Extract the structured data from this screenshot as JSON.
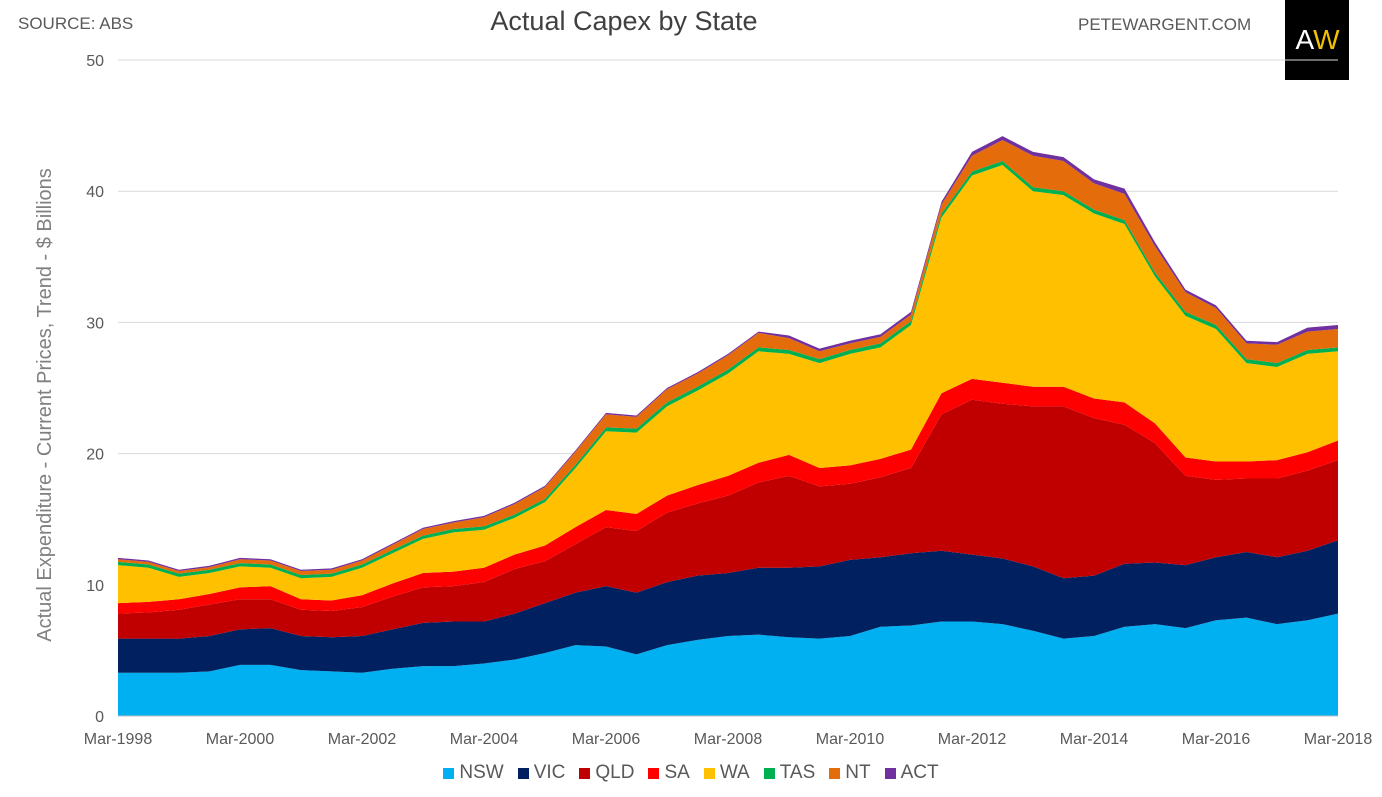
{
  "header": {
    "source": "SOURCE: ABS",
    "title": "Actual Capex by State",
    "site": "PETEWARGENT.COM",
    "logo_a": "A",
    "logo_w": "W"
  },
  "chart_data": {
    "type": "area",
    "stacked": true,
    "title": "Actual Capex by State",
    "xlabel": "",
    "ylabel": "Actual Expenditure - Current Prices, Trend - $ Billions",
    "ylim": [
      0,
      50
    ],
    "yticks": [
      0,
      10,
      20,
      30,
      40,
      50
    ],
    "grid": true,
    "legend_position": "bottom",
    "x_tick_labels": [
      "Mar-1998",
      "Mar-2000",
      "Mar-2002",
      "Mar-2004",
      "Mar-2006",
      "Mar-2008",
      "Mar-2010",
      "Mar-2012",
      "Mar-2014",
      "Mar-2016",
      "Mar-2018"
    ],
    "x_tick_years": [
      1998,
      2000,
      2002,
      2004,
      2006,
      2008,
      2010,
      2012,
      2014,
      2016,
      2018
    ],
    "x_years": [
      1998,
      1998.5,
      1999,
      1999.5,
      2000,
      2000.5,
      2001,
      2001.5,
      2002,
      2002.5,
      2003,
      2003.5,
      2004,
      2004.5,
      2005,
      2005.5,
      2006,
      2006.5,
      2007,
      2007.5,
      2008,
      2008.5,
      2009,
      2009.5,
      2010,
      2010.5,
      2011,
      2011.5,
      2012,
      2012.5,
      2013,
      2013.5,
      2014,
      2014.5,
      2015,
      2015.5,
      2016,
      2016.5,
      2017,
      2017.5,
      2018
    ],
    "series": [
      {
        "name": "NSW",
        "color": "#00b0f0",
        "values": [
          3.3,
          3.3,
          3.3,
          3.4,
          3.9,
          3.9,
          3.5,
          3.4,
          3.3,
          3.6,
          3.8,
          3.8,
          4.0,
          4.3,
          4.8,
          5.4,
          5.3,
          4.7,
          5.4,
          5.8,
          6.1,
          6.2,
          6.0,
          5.9,
          6.1,
          6.8,
          6.9,
          7.2,
          7.2,
          7.0,
          6.5,
          5.9,
          6.1,
          6.8,
          7.0,
          6.7,
          7.3,
          7.5,
          7.0,
          7.3,
          7.8
        ]
      },
      {
        "name": "VIC",
        "color": "#002060",
        "values": [
          2.6,
          2.6,
          2.6,
          2.7,
          2.7,
          2.8,
          2.6,
          2.6,
          2.8,
          3.0,
          3.3,
          3.4,
          3.2,
          3.5,
          3.8,
          4.0,
          4.6,
          4.7,
          4.8,
          4.9,
          4.8,
          5.1,
          5.3,
          5.5,
          5.8,
          5.3,
          5.5,
          5.4,
          5.1,
          5.0,
          4.9,
          4.6,
          4.6,
          4.8,
          4.7,
          4.8,
          4.8,
          5.0,
          5.1,
          5.3,
          5.6
        ]
      },
      {
        "name": "QLD",
        "color": "#c00000",
        "values": [
          1.9,
          2.0,
          2.2,
          2.4,
          2.3,
          2.2,
          2.0,
          2.0,
          2.2,
          2.5,
          2.7,
          2.7,
          3.0,
          3.4,
          3.2,
          3.7,
          4.5,
          4.7,
          5.3,
          5.5,
          5.9,
          6.5,
          7.0,
          6.1,
          5.8,
          6.1,
          6.5,
          10.4,
          11.8,
          11.8,
          12.2,
          13.1,
          12.0,
          10.6,
          9.1,
          6.8,
          5.9,
          5.6,
          6.0,
          6.1,
          6.1
        ]
      },
      {
        "name": "SA",
        "color": "#ff0000",
        "values": [
          0.8,
          0.8,
          0.8,
          0.8,
          0.9,
          1.0,
          0.8,
          0.8,
          0.9,
          1.0,
          1.1,
          1.1,
          1.1,
          1.1,
          1.2,
          1.3,
          1.3,
          1.3,
          1.3,
          1.4,
          1.5,
          1.5,
          1.6,
          1.4,
          1.4,
          1.4,
          1.4,
          1.6,
          1.6,
          1.6,
          1.5,
          1.5,
          1.5,
          1.7,
          1.5,
          1.4,
          1.4,
          1.3,
          1.4,
          1.4,
          1.5
        ]
      },
      {
        "name": "WA",
        "color": "#ffc000",
        "values": [
          2.9,
          2.6,
          1.7,
          1.6,
          1.6,
          1.4,
          1.6,
          1.8,
          2.1,
          2.3,
          2.6,
          3.0,
          2.9,
          2.8,
          3.3,
          4.5,
          6.0,
          6.2,
          6.8,
          7.2,
          7.8,
          8.5,
          7.7,
          8.0,
          8.5,
          8.5,
          9.5,
          13.4,
          15.5,
          16.6,
          14.9,
          14.6,
          14.1,
          13.6,
          11.2,
          10.8,
          10.1,
          7.5,
          7.1,
          7.5,
          6.8
        ]
      },
      {
        "name": "TAS",
        "color": "#00b050",
        "values": [
          0.25,
          0.25,
          0.25,
          0.25,
          0.25,
          0.25,
          0.25,
          0.25,
          0.25,
          0.25,
          0.25,
          0.25,
          0.25,
          0.25,
          0.25,
          0.25,
          0.3,
          0.3,
          0.3,
          0.3,
          0.3,
          0.3,
          0.3,
          0.3,
          0.3,
          0.3,
          0.3,
          0.3,
          0.3,
          0.3,
          0.3,
          0.3,
          0.3,
          0.3,
          0.3,
          0.3,
          0.3,
          0.3,
          0.3,
          0.3,
          0.3
        ]
      },
      {
        "name": "NT",
        "color": "#e46c0a",
        "values": [
          0.2,
          0.2,
          0.2,
          0.2,
          0.3,
          0.3,
          0.3,
          0.3,
          0.3,
          0.4,
          0.5,
          0.5,
          0.7,
          0.8,
          0.9,
          1.0,
          1.0,
          0.9,
          1.0,
          1.0,
          1.1,
          1.1,
          0.9,
          0.6,
          0.5,
          0.5,
          0.5,
          0.7,
          1.2,
          1.6,
          2.4,
          2.3,
          2.0,
          2.0,
          2.0,
          1.5,
          1.3,
          1.2,
          1.4,
          1.4,
          1.4
        ]
      },
      {
        "name": "ACT",
        "color": "#7030a0",
        "values": [
          0.1,
          0.1,
          0.1,
          0.1,
          0.1,
          0.1,
          0.1,
          0.1,
          0.1,
          0.1,
          0.1,
          0.1,
          0.1,
          0.1,
          0.1,
          0.1,
          0.1,
          0.1,
          0.1,
          0.1,
          0.1,
          0.1,
          0.2,
          0.2,
          0.2,
          0.2,
          0.2,
          0.2,
          0.3,
          0.3,
          0.3,
          0.3,
          0.3,
          0.4,
          0.3,
          0.2,
          0.2,
          0.2,
          0.2,
          0.3,
          0.3
        ]
      }
    ]
  }
}
